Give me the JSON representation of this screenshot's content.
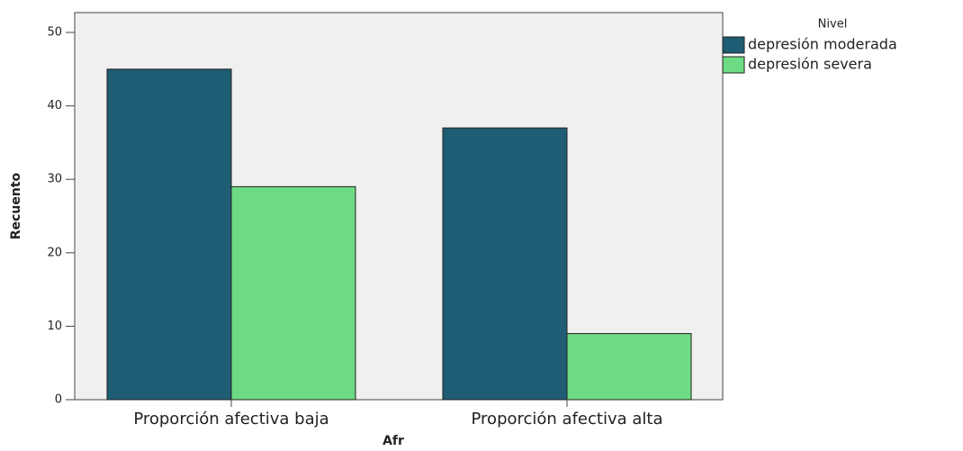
{
  "chart_data": {
    "type": "bar",
    "x_label": "Afr",
    "y_label": "Recuento",
    "categories": [
      "Proporción afectiva baja",
      "Proporción afectiva alta"
    ],
    "legend_title": "Nivel",
    "series": [
      {
        "name": "depresión moderada",
        "color": "#1e5d73",
        "values": [
          45,
          37
        ]
      },
      {
        "name": "depresión severa",
        "color": "#6ddb83",
        "values": [
          29,
          9
        ]
      }
    ],
    "ylim": [
      0,
      52.7
    ],
    "yticks": [
      0,
      10,
      20,
      30,
      40,
      50
    ],
    "legend_position": "right"
  }
}
